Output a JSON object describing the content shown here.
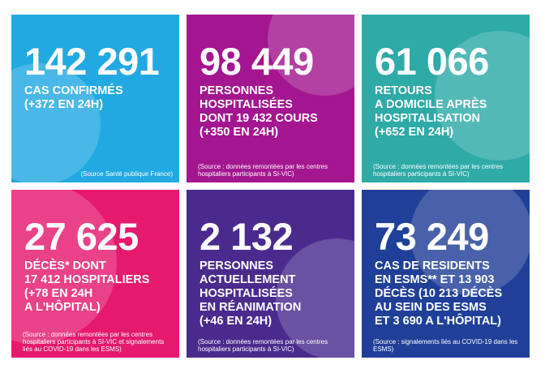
{
  "tiles": [
    {
      "number": "142 291",
      "lines": [
        "CAS CONFIRMÉS",
        "(+372 EN 24H)"
      ],
      "source": "(Source Santé publique France)"
    },
    {
      "number": "98 449",
      "lines": [
        "PERSONNES",
        "HOSPITALISÉES",
        "DONT 19 432 COURS",
        "(+350 EN 24H)"
      ],
      "source": "(Source : données remontées par les centres hospitaliers participants à SI-VIC)"
    },
    {
      "number": "61 066",
      "lines": [
        "RETOURS",
        "A DOMICILE APRÈS",
        "HOSPITALISATION",
        "(+652 EN 24H)"
      ],
      "source": "(Source : données remontées par les centres hospitaliers participants à SI-VIC)"
    },
    {
      "number": "27 625",
      "lines": [
        "DÉCÈS* DONT",
        "17 412 HOSPITALIERS",
        "(+78 EN 24H",
        "A L'HÔPITAL)"
      ],
      "source": "(Source : données remontées par les centres hospitaliers participants à SI-VIC et signalements liés au COVID-19 dans les ESMS)"
    },
    {
      "number": "2 132",
      "lines": [
        "PERSONNES",
        "ACTUELLEMENT",
        "HOSPITALISÉES",
        "EN RÉANIMATION",
        "(+46 EN 24H)"
      ],
      "source": "(Source : données remontées par les centres hospitaliers participants à SI-VIC)"
    },
    {
      "number": "73 249",
      "lines": [
        "CAS DE RESIDENTS",
        "EN ESMS** ET 13 903",
        "DÉCÈS (10 213 DÉCÈS",
        "AU SEIN DES ESMS",
        "ET 3 690 A L'HÔPITAL)"
      ],
      "source": "(Source : signalements liés au COVID-19 dans les ESMS)"
    }
  ]
}
